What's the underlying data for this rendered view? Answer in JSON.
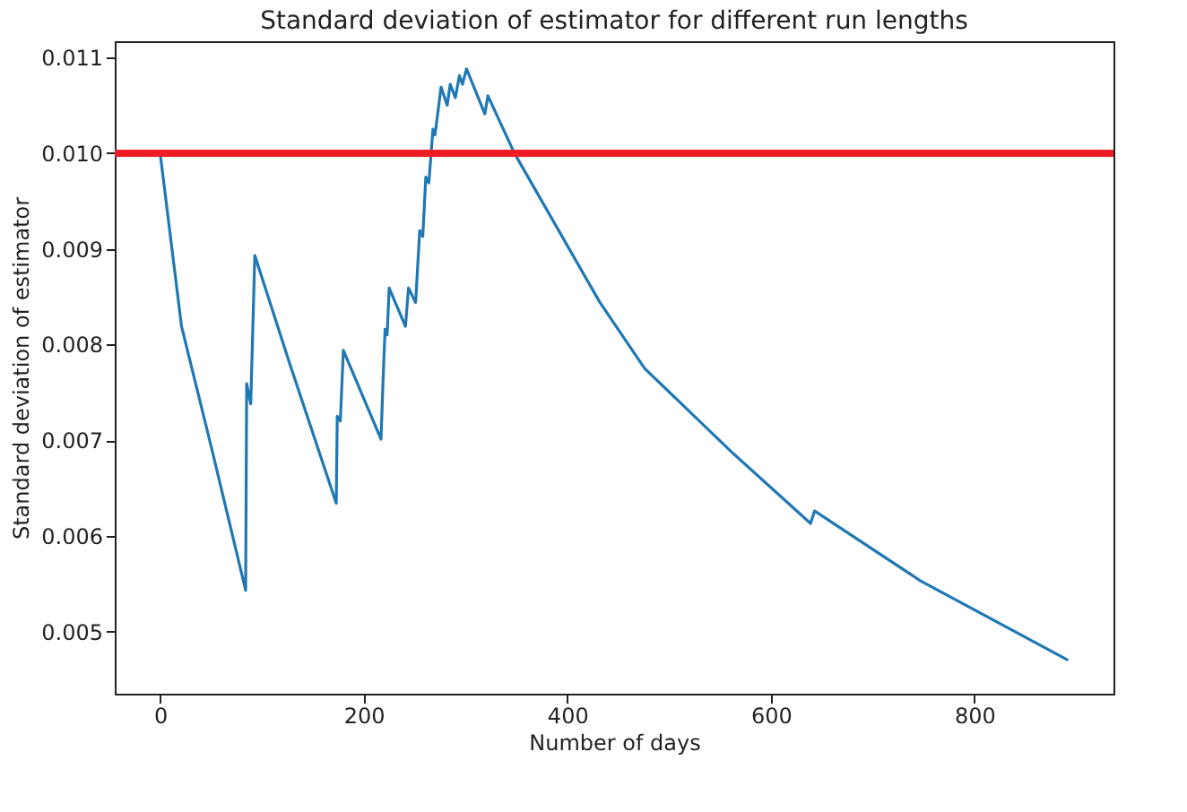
{
  "chart_data": {
    "type": "line",
    "title": "Standard deviation of estimator for different run lengths",
    "xlabel": "Number of days",
    "ylabel": "Standard deviation of estimator",
    "xlim": [
      -44.6,
      936.6
    ],
    "xticks": [
      0,
      200,
      400,
      600,
      800
    ],
    "ylim": [
      0.00435,
      0.01117
    ],
    "yticks": [
      0.005,
      0.006,
      0.007,
      0.008,
      0.009,
      {
        "value": 0.01,
        "label": "0.010"
      },
      0.011
    ],
    "grid": false,
    "marker": "none",
    "line_style": "solid",
    "series": [
      {
        "color": "#1f77b4",
        "x": [
          0,
          21,
          50,
          84,
          85,
          89,
          93,
          127,
          173,
          174,
          177,
          180,
          217,
          219,
          221,
          223,
          225,
          241,
          244,
          251,
          255,
          258,
          261,
          264,
          268,
          270,
          276,
          282,
          285,
          290,
          294,
          297,
          301,
          319,
          322,
          348,
          432,
          476,
          561,
          639,
          643,
          747,
          892
        ],
        "values": [
          0.01,
          0.00819,
          0.00694,
          0.00543,
          0.00759,
          0.00738,
          0.00893,
          0.00781,
          0.00634,
          0.00725,
          0.0072,
          0.00794,
          0.00701,
          0.00763,
          0.00816,
          0.0081,
          0.00859,
          0.00819,
          0.00859,
          0.00844,
          0.00919,
          0.00913,
          0.00975,
          0.00969,
          0.01025,
          0.01019,
          0.01069,
          0.0105,
          0.01072,
          0.01058,
          0.01081,
          0.01072,
          0.01088,
          0.01041,
          0.0106,
          0.01,
          0.00844,
          0.00775,
          0.00688,
          0.00613,
          0.00626,
          0.00553,
          0.0047
        ]
      }
    ],
    "ref_lines": [
      {
        "axis": "y",
        "value": 0.01,
        "color": "#ee1c24",
        "line_style": "solid"
      }
    ]
  }
}
